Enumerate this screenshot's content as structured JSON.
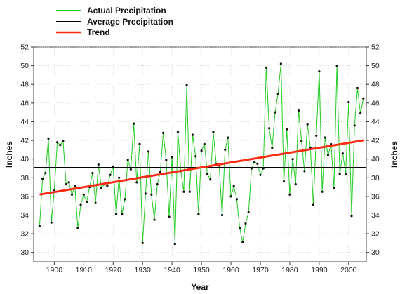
{
  "chart_data": {
    "type": "line",
    "title": "",
    "xlabel": "Year",
    "ylabel_left": "Inches",
    "ylabel_right": "Inches",
    "xlim": [
      1893,
      2006
    ],
    "ylim": [
      29,
      52
    ],
    "x_ticks": [
      1900,
      1910,
      1920,
      1930,
      1940,
      1950,
      1960,
      1970,
      1980,
      1990,
      2000
    ],
    "y_ticks": [
      30,
      32,
      34,
      36,
      38,
      40,
      42,
      44,
      46,
      48,
      50,
      52
    ],
    "grid": true,
    "legend_position": "top-left, above plot",
    "series": [
      {
        "name": "Actual Precipitation",
        "kind": "actual",
        "color": "#22cc22",
        "x": [
          1895,
          1896,
          1897,
          1898,
          1899,
          1900,
          1901,
          1902,
          1903,
          1904,
          1905,
          1906,
          1907,
          1908,
          1909,
          1910,
          1911,
          1912,
          1913,
          1914,
          1915,
          1916,
          1917,
          1918,
          1919,
          1920,
          1921,
          1922,
          1923,
          1924,
          1925,
          1926,
          1927,
          1928,
          1929,
          1930,
          1931,
          1932,
          1933,
          1934,
          1935,
          1936,
          1937,
          1938,
          1939,
          1940,
          1941,
          1942,
          1943,
          1944,
          1945,
          1946,
          1947,
          1948,
          1949,
          1950,
          1951,
          1952,
          1953,
          1954,
          1955,
          1956,
          1957,
          1958,
          1959,
          1960,
          1961,
          1962,
          1963,
          1964,
          1965,
          1966,
          1967,
          1968,
          1969,
          1970,
          1971,
          1972,
          1973,
          1974,
          1975,
          1976,
          1977,
          1978,
          1979,
          1980,
          1981,
          1982,
          1983,
          1984,
          1985,
          1986,
          1987,
          1988,
          1989,
          1990,
          1991,
          1992,
          1993,
          1994,
          1995,
          1996,
          1997,
          1998,
          1999,
          2000,
          2001,
          2002,
          2003,
          2004,
          2005
        ],
        "y": [
          32.8,
          37.9,
          38.5,
          42.2,
          33.2,
          36.7,
          41.8,
          41.5,
          41.9,
          37.3,
          37.5,
          36.2,
          37.1,
          32.6,
          35.1,
          36.2,
          35.4,
          37.0,
          38.5,
          35.3,
          39.4,
          36.9,
          37.3,
          37.1,
          38.3,
          39.2,
          34.1,
          38.0,
          34.1,
          35.7,
          39.9,
          38.9,
          43.8,
          37.5,
          41.6,
          31.0,
          36.3,
          40.8,
          36.2,
          33.5,
          37.3,
          38.6,
          42.8,
          39.9,
          33.8,
          40.2,
          30.9,
          42.9,
          38.7,
          36.5,
          47.9,
          36.5,
          42.6,
          40.3,
          34.1,
          40.9,
          41.6,
          38.4,
          37.8,
          42.9,
          39.5,
          39.3,
          34.0,
          41.0,
          42.3,
          36.0,
          37.1,
          35.7,
          32.6,
          31.1,
          33.1,
          34.3,
          39.0,
          39.7,
          39.5,
          38.3,
          39.0,
          49.8,
          43.3,
          41.2,
          45.0,
          47.0,
          50.2,
          37.6,
          43.2,
          36.2,
          40.0,
          37.3,
          45.2,
          41.9,
          38.7,
          43.7,
          41.2,
          35.1,
          42.5,
          49.4,
          36.5,
          42.3,
          40.4,
          41.6,
          36.9,
          50.0,
          38.4,
          40.6,
          38.4,
          46.1,
          33.9,
          43.6,
          47.6,
          44.9,
          46.5
        ]
      },
      {
        "name": "Average Precipitation",
        "kind": "average",
        "color": "#000000",
        "x": [
          1893,
          2006
        ],
        "y": [
          39.1,
          39.1
        ]
      },
      {
        "name": "Trend",
        "kind": "trend",
        "color": "#ff2a12",
        "x": [
          1895,
          2005
        ],
        "y": [
          36.2,
          42.0
        ]
      }
    ]
  }
}
